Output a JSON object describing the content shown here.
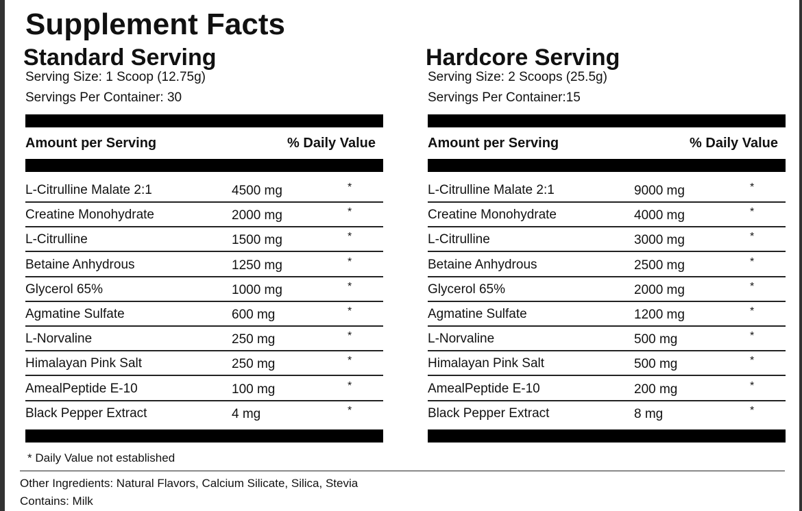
{
  "title": "Supplement Facts",
  "panels": [
    {
      "heading": "Standard Serving",
      "serving_size": "Serving Size: 1 Scoop (12.75g)",
      "servings_per_container": "Servings Per Container: 30",
      "columns": [
        "Amount per Serving",
        "% Daily Value"
      ],
      "rows": [
        [
          "L-Citrulline Malate 2:1",
          "4500 mg",
          "*"
        ],
        [
          "Creatine Monohydrate",
          "2000 mg",
          "*"
        ],
        [
          "L-Citrulline",
          "1500 mg",
          "*"
        ],
        [
          "Betaine Anhydrous",
          "1250 mg",
          "*"
        ],
        [
          "Glycerol 65%",
          "1000 mg",
          "*"
        ],
        [
          "Agmatine Sulfate",
          "600 mg",
          "*"
        ],
        [
          "L-Norvaline",
          "250 mg",
          "*"
        ],
        [
          "Himalayan Pink Salt",
          "250 mg",
          "*"
        ],
        [
          "AmealPeptide E-10",
          "100 mg",
          "*"
        ],
        [
          "Black Pepper Extract",
          "4 mg",
          "*"
        ]
      ]
    },
    {
      "heading": "Hardcore Serving",
      "serving_size": "Serving Size: 2 Scoops (25.5g)",
      "servings_per_container": "Servings Per Container:15",
      "columns": [
        "Amount per Serving",
        "% Daily Value"
      ],
      "rows": [
        [
          "L-Citrulline Malate 2:1",
          "9000 mg",
          "*"
        ],
        [
          "Creatine Monohydrate",
          "4000 mg",
          "*"
        ],
        [
          "L-Citrulline",
          "3000 mg",
          "*"
        ],
        [
          "Betaine Anhydrous",
          "2500 mg",
          "*"
        ],
        [
          "Glycerol 65%",
          "2000 mg",
          "*"
        ],
        [
          "Agmatine Sulfate",
          "1200 mg",
          "*"
        ],
        [
          "L-Norvaline",
          "500 mg",
          "*"
        ],
        [
          "Himalayan Pink Salt",
          "500 mg",
          "*"
        ],
        [
          "AmealPeptide E-10",
          "200 mg",
          "*"
        ],
        [
          "Black Pepper Extract",
          "8 mg",
          "*"
        ]
      ]
    }
  ],
  "footnote": "* Daily Value not established",
  "other_ingredients": "Other Ingredients: Natural Flavors, Calcium Silicate, Silica, Stevia",
  "contains": "Contains: Milk"
}
